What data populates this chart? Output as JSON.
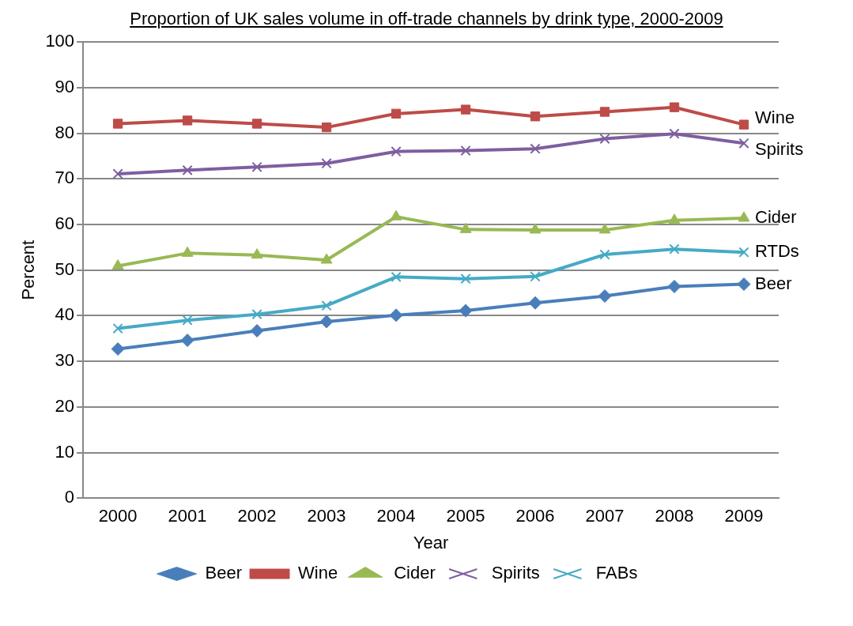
{
  "chart_data": {
    "type": "line",
    "title": "Proportion of UK sales volume in off-trade channels by drink type, 2000-2009",
    "xlabel": "Year",
    "ylabel": "Percent",
    "categories": [
      "2000",
      "2001",
      "2002",
      "2003",
      "2004",
      "2005",
      "2006",
      "2007",
      "2008",
      "2009"
    ],
    "series": [
      {
        "name": "Beer",
        "color": "#4a7ebb",
        "marker": "diamond",
        "values": [
          32.7,
          34.6,
          36.7,
          38.7,
          40.1,
          41.1,
          42.8,
          44.3,
          46.4,
          46.9
        ]
      },
      {
        "name": "Wine",
        "color": "#be4b48",
        "marker": "square",
        "values": [
          82.1,
          82.8,
          82.1,
          81.3,
          84.3,
          85.2,
          83.7,
          84.7,
          85.7,
          81.9
        ]
      },
      {
        "name": "Cider",
        "color": "#98b954",
        "marker": "triangle",
        "values": [
          50.9,
          53.7,
          53.3,
          52.2,
          61.7,
          58.9,
          58.8,
          58.8,
          60.9,
          61.4
        ]
      },
      {
        "name": "Spirits",
        "color": "#7d5fa0",
        "marker": "cross",
        "values": [
          71.1,
          71.9,
          72.6,
          73.4,
          76.0,
          76.2,
          76.6,
          78.8,
          79.9,
          77.8
        ]
      },
      {
        "name": "FABs",
        "color": "#46aac5",
        "marker": "cross",
        "values": [
          37.2,
          39.0,
          40.3,
          42.2,
          48.5,
          48.1,
          48.6,
          53.4,
          54.6,
          53.9
        ]
      }
    ],
    "annotations": [
      {
        "text": "Wine",
        "x": "2009",
        "y": 81.9
      },
      {
        "text": "Spirits",
        "x": "2009",
        "y": 77.8
      },
      {
        "text": "Cider",
        "x": "2009",
        "y": 61.4
      },
      {
        "text": "RTDs",
        "x": "2009",
        "y": 53.9
      },
      {
        "text": "Beer",
        "x": "2009",
        "y": 46.9
      }
    ],
    "ylim": [
      0,
      100
    ],
    "yticks": [
      0,
      10,
      20,
      30,
      40,
      50,
      60,
      70,
      80,
      90,
      100
    ],
    "grid": "y",
    "legend": "bottom",
    "line_style": "solid"
  }
}
